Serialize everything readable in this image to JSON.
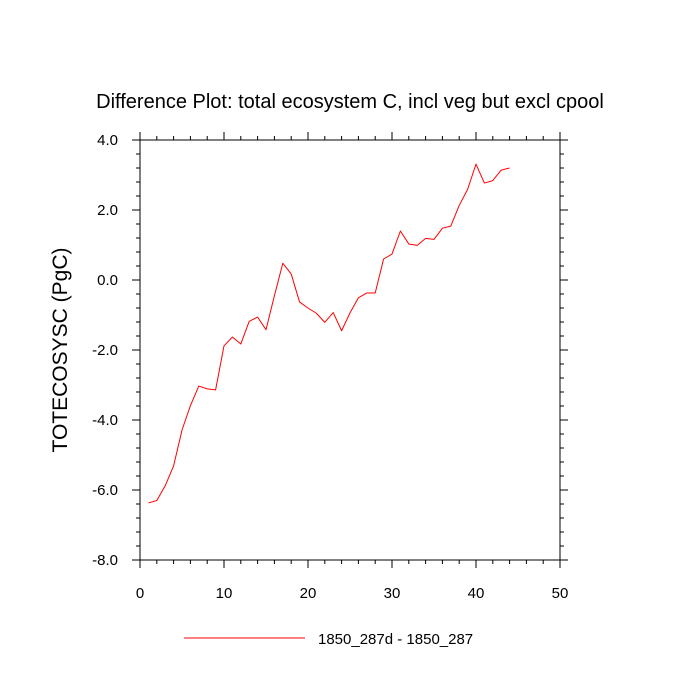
{
  "chart_data": {
    "type": "line",
    "title": "Difference Plot: total ecosystem C, incl veg but excl cpool",
    "xlabel": "",
    "ylabel": "TOTECOSYSC  (PgC)",
    "xlim": [
      0,
      50
    ],
    "ylim": [
      -8.0,
      4.0
    ],
    "x_ticks": [
      0,
      10,
      20,
      30,
      40,
      50
    ],
    "x_tick_labels": [
      "0",
      "10",
      "20",
      "30",
      "40",
      "50"
    ],
    "y_ticks": [
      -8,
      -6,
      -4,
      -2,
      0,
      2,
      4
    ],
    "y_tick_labels": [
      "-8.0",
      "-6.0",
      "-4.0",
      "-2.0",
      "0.0",
      "2.0",
      "4.0"
    ],
    "grid": false,
    "legend_position": "bottom",
    "series": [
      {
        "name": "1850_287d - 1850_287",
        "color": "#ff0000",
        "x": [
          1,
          2,
          3,
          4,
          5,
          6,
          7,
          8,
          9,
          10,
          11,
          12,
          13,
          14,
          15,
          16,
          17,
          18,
          19,
          20,
          21,
          22,
          23,
          24,
          25,
          26,
          27,
          28,
          29,
          30,
          31,
          32,
          33,
          34,
          35,
          36,
          37,
          38,
          39,
          40,
          41,
          42,
          43,
          44
        ],
        "y": [
          -6.37,
          -6.3,
          -5.88,
          -5.31,
          -4.29,
          -3.59,
          -3.03,
          -3.11,
          -3.14,
          -1.88,
          -1.63,
          -1.83,
          -1.18,
          -1.06,
          -1.42,
          -0.45,
          0.48,
          0.17,
          -0.63,
          -0.8,
          -0.95,
          -1.21,
          -0.93,
          -1.45,
          -0.94,
          -0.51,
          -0.37,
          -0.37,
          0.6,
          0.74,
          1.4,
          1.03,
          0.99,
          1.19,
          1.16,
          1.48,
          1.54,
          2.13,
          2.59,
          3.31,
          2.77,
          2.84,
          3.14,
          3.2
        ]
      }
    ]
  }
}
